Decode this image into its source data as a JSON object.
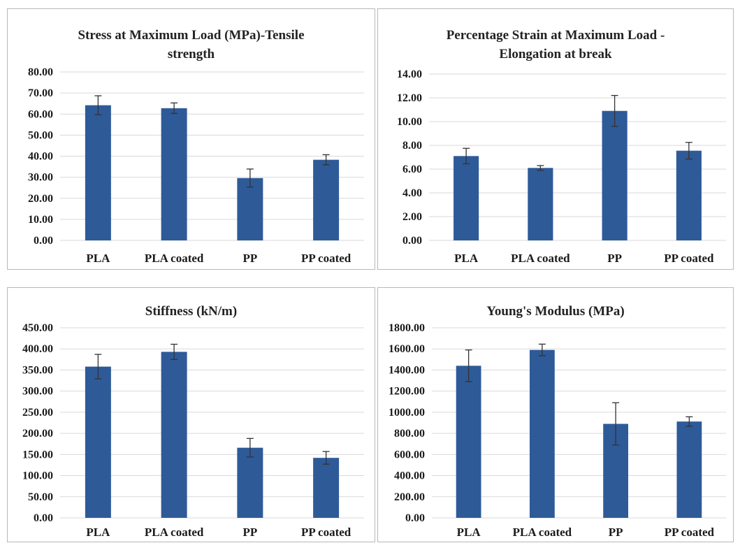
{
  "colors": {
    "bar": "#2e5a98",
    "grid": "#d9d9d9",
    "error": "#333333"
  },
  "chart_data": [
    {
      "type": "bar",
      "title": "Stress at Maximum Load (MPa)-Tensile strength",
      "title_lines": [
        "Stress at Maximum Load (MPa)-Tensile",
        "strength"
      ],
      "categories": [
        "PLA",
        "PLA coated",
        "PP",
        "PP coated"
      ],
      "values": [
        64.2,
        62.8,
        29.6,
        38.3
      ],
      "errors": [
        4.5,
        2.5,
        4.3,
        2.4
      ],
      "ylim": [
        0,
        80
      ],
      "yticks": [
        "0.00",
        "10.00",
        "20.00",
        "30.00",
        "40.00",
        "50.00",
        "60.00",
        "70.00",
        "80.00"
      ],
      "grid": true
    },
    {
      "type": "bar",
      "title": "Percentage Strain at Maximum Load - Elongation at break",
      "title_lines": [
        "Percentage Strain at Maximum Load -",
        "Elongation at break"
      ],
      "categories": [
        "PLA",
        "PLA coated",
        "PP",
        "PP coated"
      ],
      "values": [
        7.1,
        6.1,
        10.9,
        7.55
      ],
      "errors": [
        0.65,
        0.2,
        1.3,
        0.7
      ],
      "ylim": [
        0,
        14
      ],
      "yticks": [
        "0.00",
        "2.00",
        "4.00",
        "6.00",
        "8.00",
        "10.00",
        "12.00",
        "14.00"
      ],
      "grid": true
    },
    {
      "type": "bar",
      "title": "Stiffness (kN/m)",
      "title_lines": [
        "Stiffness (kN/m)"
      ],
      "categories": [
        "PLA",
        "PLA coated",
        "PP",
        "PP coated"
      ],
      "values": [
        358,
        393,
        166,
        142
      ],
      "errors": [
        29,
        18,
        22,
        15
      ],
      "ylim": [
        0,
        450
      ],
      "yticks": [
        "0.00",
        "50.00",
        "100.00",
        "150.00",
        "200.00",
        "250.00",
        "300.00",
        "350.00",
        "400.00",
        "450.00"
      ],
      "grid": true
    },
    {
      "type": "bar",
      "title": "Young's Modulus (MPa)",
      "title_lines": [
        "Young's Modulus (MPa)"
      ],
      "categories": [
        "PLA",
        "PLA coated",
        "PP",
        "PP coated"
      ],
      "values": [
        1440,
        1590,
        890,
        912
      ],
      "errors": [
        150,
        55,
        200,
        45
      ],
      "ylim": [
        0,
        1800
      ],
      "yticks": [
        "0.00",
        "200.00",
        "400.00",
        "600.00",
        "800.00",
        "1000.00",
        "1200.00",
        "1400.00",
        "1600.00",
        "1800.00"
      ],
      "grid": true
    }
  ]
}
